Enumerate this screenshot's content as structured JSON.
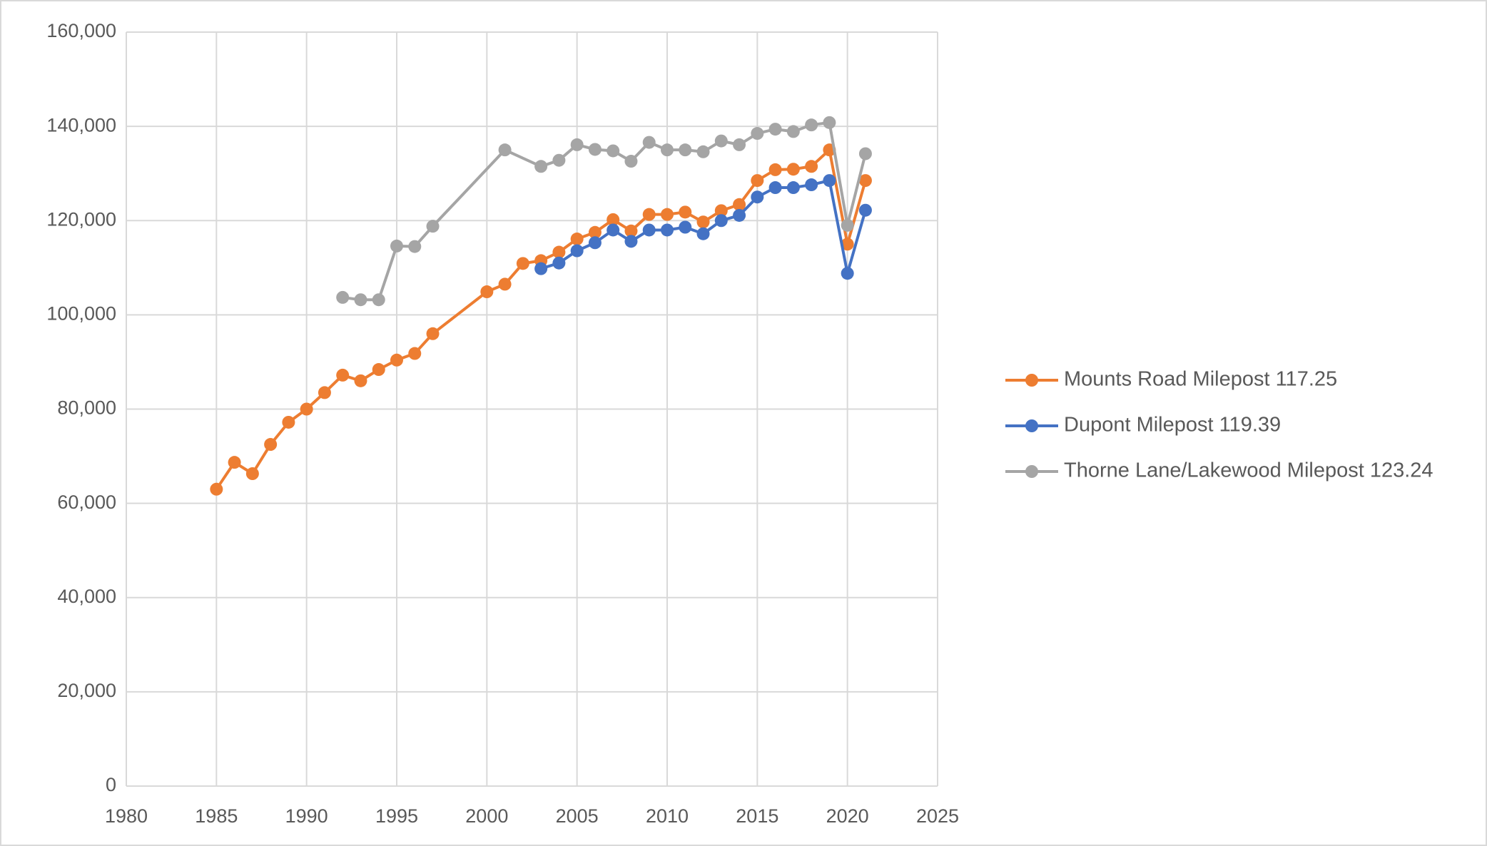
{
  "chart_data": {
    "type": "line",
    "xlim": [
      1980,
      2025
    ],
    "xticks": [
      1980,
      1985,
      1990,
      1995,
      2000,
      2005,
      2010,
      2015,
      2020,
      2025
    ],
    "ylim": [
      0,
      160000
    ],
    "yticks": [
      0,
      {
        "value": 20000,
        "label": "20,000"
      },
      {
        "value": 40000,
        "label": "40,000"
      },
      {
        "value": 60000,
        "label": "60,000"
      },
      {
        "value": 80000,
        "label": "80,000"
      },
      {
        "value": 100000,
        "label": "100,000"
      },
      {
        "value": 120000,
        "label": "120,000"
      },
      {
        "value": 140000,
        "label": "140,000"
      },
      {
        "value": 160000,
        "label": "160,000"
      }
    ],
    "grid": true,
    "legend": "right",
    "series": [
      {
        "name": "Mounts Road Milepost 117.25",
        "color": "#ed7d31",
        "x": [
          1985,
          1986,
          1987,
          1988,
          1989,
          1990,
          1991,
          1992,
          1993,
          1994,
          1995,
          1996,
          1997,
          2000,
          2001,
          2002,
          2003,
          2004,
          2005,
          2006,
          2007,
          2008,
          2009,
          2010,
          2011,
          2012,
          2013,
          2014,
          2015,
          2016,
          2017,
          2018,
          2019,
          2020,
          2021
        ],
        "values": [
          63000,
          68700,
          66300,
          72500,
          77200,
          80000,
          83500,
          87200,
          86000,
          88400,
          90400,
          91800,
          96000,
          104900,
          106500,
          110900,
          111500,
          113300,
          116100,
          117500,
          120200,
          117800,
          121300,
          121300,
          121800,
          119700,
          122100,
          123400,
          128500,
          130800,
          130900,
          131500,
          135000,
          115000,
          128500
        ]
      },
      {
        "name": "Dupont Milepost 119.39",
        "color": "#4472c4",
        "x": [
          2003,
          2004,
          2005,
          2006,
          2007,
          2008,
          2009,
          2010,
          2011,
          2012,
          2013,
          2014,
          2015,
          2016,
          2017,
          2018,
          2019,
          2020,
          2021
        ],
        "values": [
          109800,
          111000,
          113600,
          115300,
          118000,
          115600,
          118000,
          118000,
          118600,
          117200,
          120000,
          121100,
          125000,
          127000,
          127000,
          127600,
          128500,
          108800,
          122200
        ]
      },
      {
        "name": "Thorne Lane/Lakewood Milepost 123.24",
        "color": "#a5a5a5",
        "x": [
          1992,
          1993,
          1994,
          1995,
          1996,
          1997,
          2001,
          2003,
          2004,
          2005,
          2006,
          2007,
          2008,
          2009,
          2010,
          2011,
          2012,
          2013,
          2014,
          2015,
          2016,
          2017,
          2018,
          2019,
          2020,
          2021
        ],
        "values": [
          103700,
          103200,
          103200,
          114600,
          114500,
          118800,
          135000,
          131500,
          132800,
          136100,
          135100,
          134800,
          132600,
          136600,
          135000,
          135000,
          134600,
          136900,
          136100,
          138500,
          139400,
          138900,
          140300,
          140800,
          119000,
          134200
        ]
      }
    ]
  }
}
